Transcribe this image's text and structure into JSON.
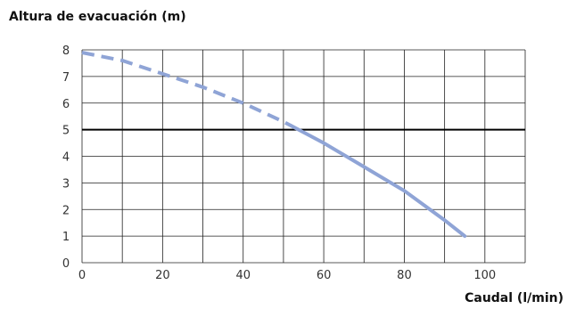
{
  "chart_data": {
    "type": "line",
    "ylabel": "Altura de evacuación (m)",
    "xlabel": "Caudal (l/min)",
    "xlim": [
      0,
      110
    ],
    "ylim": [
      0,
      8
    ],
    "x_ticks": [
      0,
      20,
      40,
      60,
      80,
      100
    ],
    "y_ticks": [
      0,
      1,
      2,
      3,
      4,
      5,
      6,
      7,
      8
    ],
    "grid": true,
    "reference_line": {
      "y": 5
    },
    "series": [
      {
        "color": "#8fa4d6",
        "points": [
          {
            "x": 0,
            "y": 7.9
          },
          {
            "x": 10,
            "y": 7.6
          },
          {
            "x": 20,
            "y": 7.1
          },
          {
            "x": 30,
            "y": 6.6
          },
          {
            "x": 40,
            "y": 6.0
          },
          {
            "x": 50,
            "y": 5.3
          },
          {
            "x": 60,
            "y": 4.5
          },
          {
            "x": 70,
            "y": 3.6
          },
          {
            "x": 80,
            "y": 2.7
          },
          {
            "x": 90,
            "y": 1.6
          },
          {
            "x": 95,
            "y": 1.0
          }
        ],
        "dashed_until_x": 52
      }
    ]
  }
}
